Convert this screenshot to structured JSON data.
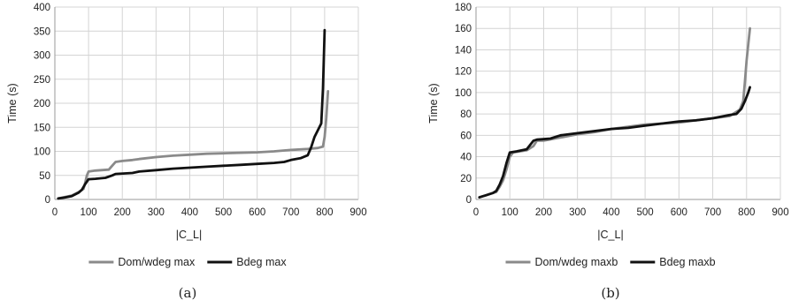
{
  "chart_data": [
    {
      "type": "line",
      "caption": "(a)",
      "xlabel": "|C_L|",
      "ylabel": "Time (s)",
      "xlim": [
        0,
        900
      ],
      "ylim": [
        0,
        400
      ],
      "xticks": [
        0,
        100,
        200,
        300,
        400,
        500,
        600,
        700,
        800,
        900
      ],
      "yticks": [
        0,
        50,
        100,
        150,
        200,
        250,
        300,
        350,
        400
      ],
      "grid": true,
      "legend": "bottom",
      "series": [
        {
          "name": "Dom/wdeg max",
          "color": "#8a8a8a",
          "points": [
            [
              10,
              2
            ],
            [
              30,
              5
            ],
            [
              50,
              8
            ],
            [
              70,
              15
            ],
            [
              85,
              22
            ],
            [
              90,
              35
            ],
            [
              95,
              50
            ],
            [
              100,
              58
            ],
            [
              120,
              60
            ],
            [
              160,
              62
            ],
            [
              170,
              70
            ],
            [
              180,
              78
            ],
            [
              200,
              80
            ],
            [
              230,
              82
            ],
            [
              250,
              84
            ],
            [
              300,
              88
            ],
            [
              350,
              91
            ],
            [
              400,
              93
            ],
            [
              450,
              95
            ],
            [
              500,
              96
            ],
            [
              550,
              97
            ],
            [
              600,
              98
            ],
            [
              650,
              100
            ],
            [
              700,
              103
            ],
            [
              750,
              105
            ],
            [
              780,
              107
            ],
            [
              795,
              110
            ],
            [
              800,
              130
            ],
            [
              805,
              170
            ],
            [
              810,
              225
            ]
          ]
        },
        {
          "name": "Bdeg max",
          "color": "#111111",
          "points": [
            [
              10,
              2
            ],
            [
              30,
              4
            ],
            [
              50,
              7
            ],
            [
              70,
              14
            ],
            [
              80,
              20
            ],
            [
              90,
              32
            ],
            [
              100,
              42
            ],
            [
              120,
              43
            ],
            [
              150,
              45
            ],
            [
              170,
              50
            ],
            [
              180,
              53
            ],
            [
              230,
              55
            ],
            [
              250,
              58
            ],
            [
              300,
              61
            ],
            [
              350,
              64
            ],
            [
              400,
              66
            ],
            [
              450,
              68
            ],
            [
              500,
              70
            ],
            [
              550,
              72
            ],
            [
              600,
              74
            ],
            [
              650,
              76
            ],
            [
              680,
              78
            ],
            [
              700,
              82
            ],
            [
              730,
              86
            ],
            [
              750,
              92
            ],
            [
              760,
              108
            ],
            [
              770,
              130
            ],
            [
              790,
              158
            ],
            [
              795,
              230
            ],
            [
              800,
              352
            ]
          ]
        }
      ]
    },
    {
      "type": "line",
      "caption": "(b)",
      "xlabel": "|C_L|",
      "ylabel": "Time (s)",
      "xlim": [
        0,
        900
      ],
      "ylim": [
        0,
        180
      ],
      "xticks": [
        0,
        100,
        200,
        300,
        400,
        500,
        600,
        700,
        800,
        900
      ],
      "yticks": [
        0,
        20,
        40,
        60,
        80,
        100,
        120,
        140,
        160,
        180
      ],
      "grid": true,
      "legend": "bottom",
      "series": [
        {
          "name": "Dom/wdeg maxb",
          "color": "#8a8a8a",
          "points": [
            [
              10,
              2
            ],
            [
              30,
              4
            ],
            [
              50,
              6
            ],
            [
              60,
              7
            ],
            [
              70,
              12
            ],
            [
              80,
              18
            ],
            [
              90,
              28
            ],
            [
              100,
              40
            ],
            [
              110,
              44
            ],
            [
              150,
              46
            ],
            [
              170,
              50
            ],
            [
              180,
              55
            ],
            [
              200,
              55
            ],
            [
              250,
              58
            ],
            [
              300,
              61
            ],
            [
              350,
              63
            ],
            [
              400,
              66
            ],
            [
              450,
              68
            ],
            [
              500,
              70
            ],
            [
              550,
              71
            ],
            [
              600,
              72
            ],
            [
              650,
              74
            ],
            [
              700,
              76
            ],
            [
              750,
              78
            ],
            [
              780,
              84
            ],
            [
              790,
              92
            ],
            [
              795,
              110
            ],
            [
              800,
              130
            ],
            [
              810,
              160
            ]
          ]
        },
        {
          "name": "Bdeg maxb",
          "color": "#111111",
          "points": [
            [
              10,
              2
            ],
            [
              30,
              4
            ],
            [
              50,
              6
            ],
            [
              60,
              8
            ],
            [
              70,
              14
            ],
            [
              80,
              22
            ],
            [
              90,
              34
            ],
            [
              100,
              44
            ],
            [
              120,
              45
            ],
            [
              150,
              47
            ],
            [
              170,
              55
            ],
            [
              180,
              56
            ],
            [
              220,
              57
            ],
            [
              250,
              60
            ],
            [
              300,
              62
            ],
            [
              350,
              64
            ],
            [
              400,
              66
            ],
            [
              450,
              67
            ],
            [
              500,
              69
            ],
            [
              550,
              71
            ],
            [
              600,
              73
            ],
            [
              650,
              74
            ],
            [
              700,
              76
            ],
            [
              750,
              79
            ],
            [
              770,
              80
            ],
            [
              785,
              85
            ],
            [
              795,
              92
            ],
            [
              805,
              100
            ],
            [
              810,
              105
            ]
          ]
        }
      ]
    }
  ]
}
